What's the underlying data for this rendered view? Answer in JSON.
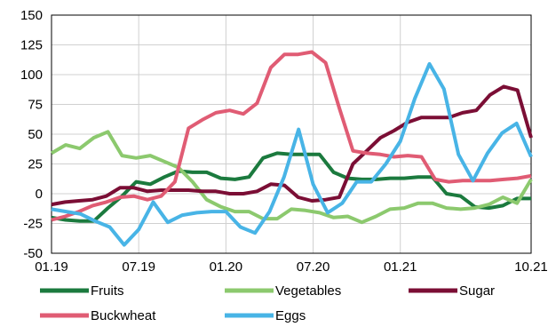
{
  "chart_data": {
    "type": "line",
    "title": "",
    "xlabel": "",
    "ylabel": "",
    "ylim": [
      -50,
      150
    ],
    "yticks": [
      -50,
      -25,
      0,
      25,
      50,
      75,
      100,
      125,
      150
    ],
    "xticks": [
      "01.19",
      "07.19",
      "01.20",
      "07.20",
      "01.21",
      "10.21"
    ],
    "x_range": [
      "01.19",
      "10.21"
    ],
    "grid": true,
    "legend_position": "bottom",
    "series": [
      {
        "name": "Fruits",
        "color": "#1b7a3e",
        "values": [
          -20,
          -22,
          -23,
          -23,
          -12,
          -2,
          10,
          8,
          14,
          19,
          18,
          18,
          13,
          12,
          14,
          30,
          34,
          33,
          33,
          33,
          18,
          13,
          12,
          12,
          13,
          13,
          14,
          14,
          0,
          -2,
          -11,
          -12,
          -10,
          -4,
          -4
        ]
      },
      {
        "name": "Vegetables",
        "color": "#8cc96e",
        "values": [
          34,
          41,
          38,
          47,
          52,
          32,
          30,
          32,
          27,
          22,
          10,
          -5,
          -11,
          -15,
          -15,
          -21,
          -21,
          -13,
          -14,
          -16,
          -20,
          -19,
          -24,
          -19,
          -13,
          -12,
          -8,
          -8,
          -12,
          -13,
          -12,
          -9,
          -3,
          -8,
          12
        ]
      },
      {
        "name": "Sugar",
        "color": "#7b0e35",
        "values": [
          -9,
          -7,
          -6,
          -5,
          -2,
          5,
          5,
          2,
          3,
          3,
          3,
          2,
          2,
          0,
          0,
          2,
          8,
          7,
          -3,
          -6,
          -5,
          -3,
          25,
          36,
          47,
          53,
          60,
          64,
          64,
          64,
          68,
          70,
          83,
          90,
          87,
          47
        ]
      },
      {
        "name": "Buckwheat",
        "color": "#e05c74",
        "values": [
          -22,
          -19,
          -15,
          -10,
          -7,
          -3,
          -2,
          -5,
          -2,
          10,
          55,
          62,
          68,
          70,
          67,
          76,
          106,
          117,
          117,
          119,
          110,
          72,
          36,
          34,
          33,
          31,
          32,
          31,
          12,
          10,
          11,
          11,
          11,
          12,
          13,
          15
        ]
      },
      {
        "name": "Eggs",
        "color": "#48b4e6",
        "values": [
          -13,
          -15,
          -17,
          -23,
          -28,
          -43,
          -30,
          -7,
          -24,
          -18,
          -16,
          -15,
          -15,
          -28,
          -33,
          -15,
          14,
          54,
          8,
          -16,
          -8,
          10,
          10,
          25,
          44,
          80,
          109,
          88,
          33,
          11,
          34,
          51,
          59,
          31
        ]
      }
    ]
  }
}
